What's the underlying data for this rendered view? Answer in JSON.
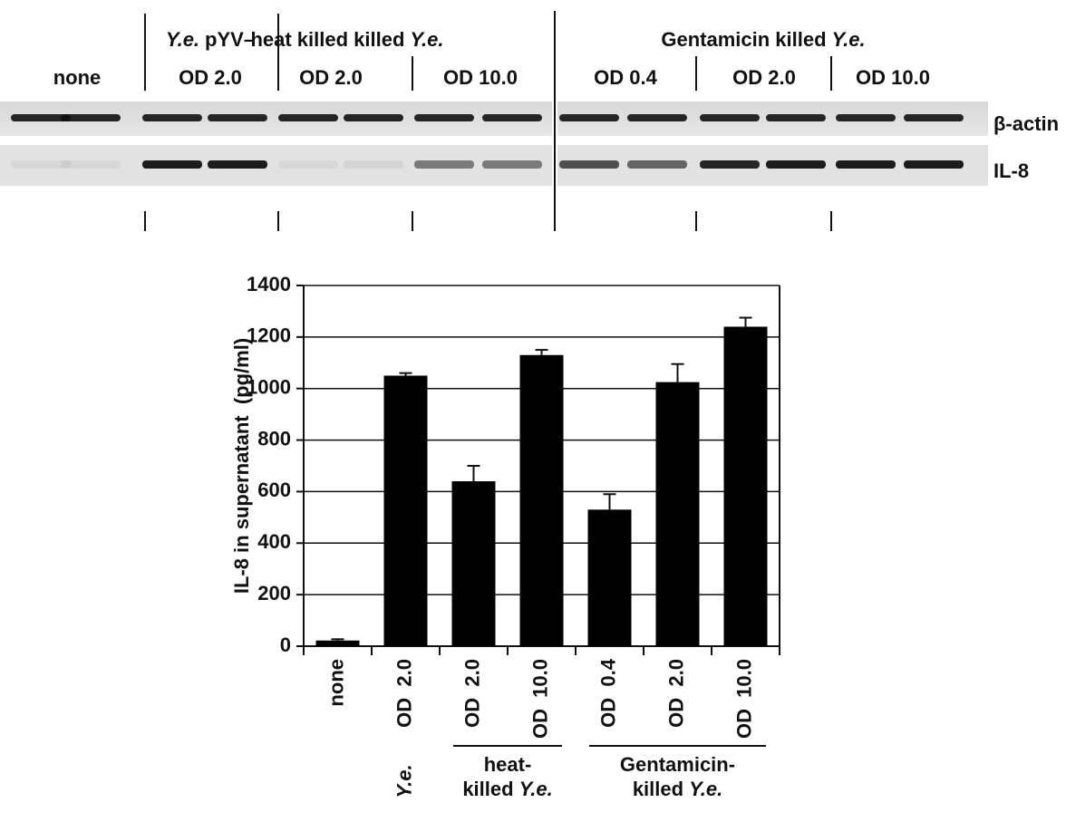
{
  "gel": {
    "groups": [
      {
        "italic": "Y.e.",
        "text": "pYV–"
      },
      {
        "text": "heat killed killed",
        "italic": "Y.e."
      },
      {
        "text": "Gentamicin killed",
        "italic": "Y.e."
      }
    ],
    "conditions": [
      "none",
      "OD 2.0",
      "OD 2.0",
      "OD 10.0",
      "OD 0.4",
      "OD 2.0",
      "OD 10.0"
    ],
    "rows": [
      "β-actin",
      "IL-8"
    ]
  },
  "chart_data": {
    "type": "bar",
    "y_label": "IL-8 in supernatant  (pg/ml)",
    "categories": [
      "none",
      "OD  2.0",
      "OD  2.0",
      "OD  10.0",
      "OD  0.4",
      "OD  2.0",
      "OD  10.0"
    ],
    "values": [
      22,
      1050,
      640,
      1130,
      530,
      1025,
      1240
    ],
    "errors": [
      5,
      10,
      60,
      20,
      60,
      70,
      35
    ],
    "color": "#000000",
    "ylim": [
      0,
      1400
    ],
    "yticks": [
      0,
      200,
      400,
      600,
      800,
      1000,
      1200,
      1400
    ],
    "grid": true,
    "groups": [
      {
        "italic": "Y.e."
      },
      {
        "text": "heat-",
        "text2": "killed",
        "italic": "Y.e."
      },
      {
        "text": "Gentamicin-",
        "text2": "killed",
        "italic": "Y.e."
      }
    ]
  }
}
